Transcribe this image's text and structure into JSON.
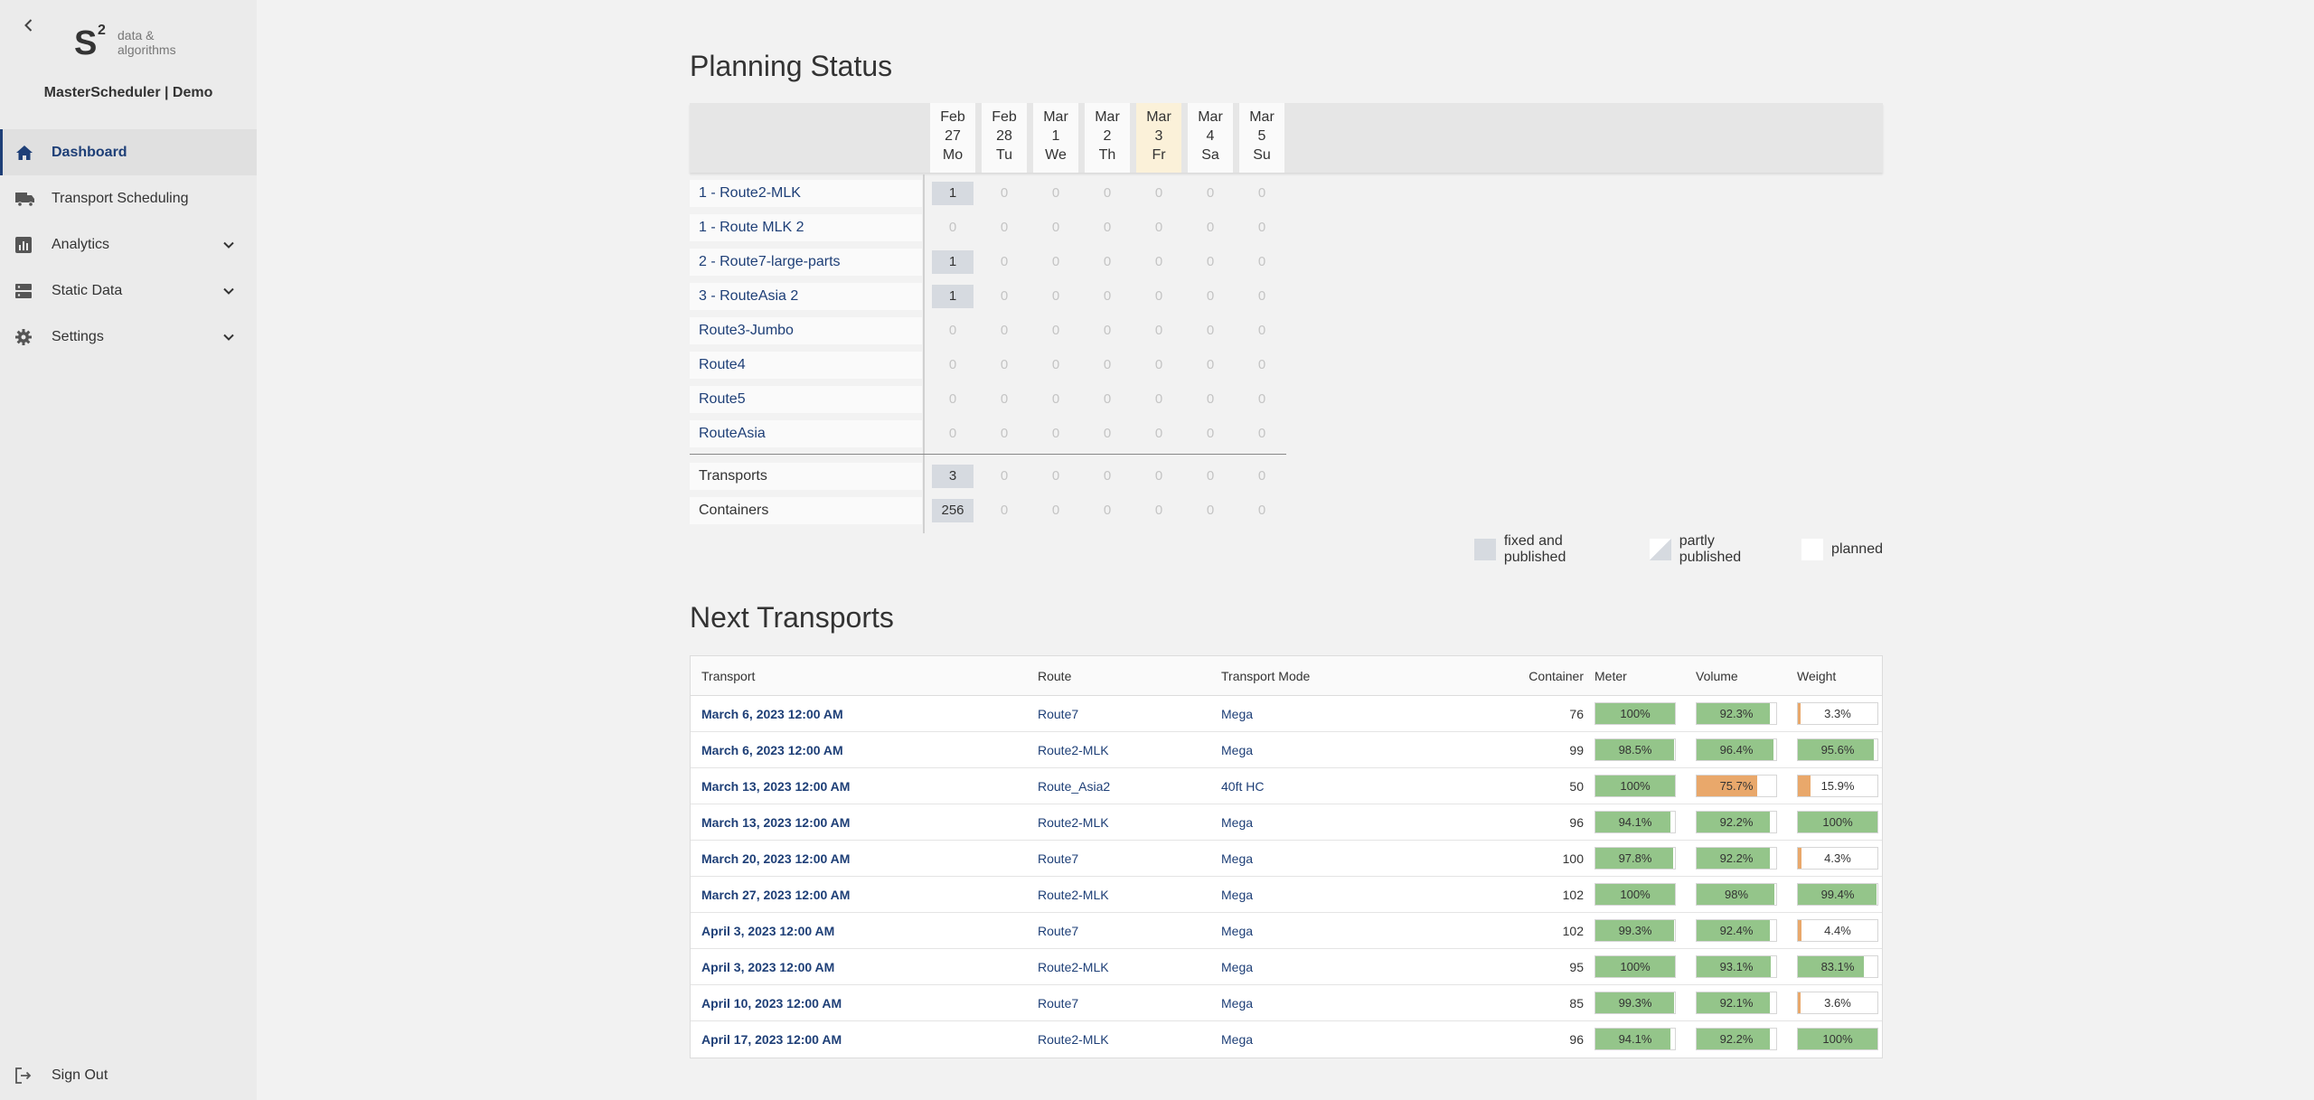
{
  "app": {
    "title": "MasterScheduler | Demo"
  },
  "logo": {
    "text_top": "data &",
    "text_bottom": "algorithms"
  },
  "sidebar": {
    "items": [
      {
        "label": "Dashboard",
        "icon": "home-icon",
        "active": true
      },
      {
        "label": "Transport Scheduling",
        "icon": "truck-icon"
      },
      {
        "label": "Analytics",
        "icon": "chart-icon",
        "expandable": true
      },
      {
        "label": "Static Data",
        "icon": "database-icon",
        "expandable": true
      },
      {
        "label": "Settings",
        "icon": "gear-icon",
        "expandable": true
      }
    ],
    "signout": "Sign Out"
  },
  "planning": {
    "title": "Planning Status",
    "days": [
      {
        "month": "Feb",
        "day": "27",
        "weekday": "Mo"
      },
      {
        "month": "Feb",
        "day": "28",
        "weekday": "Tu"
      },
      {
        "month": "Mar",
        "day": "1",
        "weekday": "We"
      },
      {
        "month": "Mar",
        "day": "2",
        "weekday": "Th"
      },
      {
        "month": "Mar",
        "day": "3",
        "weekday": "Fr",
        "today": true
      },
      {
        "month": "Mar",
        "day": "4",
        "weekday": "Sa"
      },
      {
        "month": "Mar",
        "day": "5",
        "weekday": "Su"
      }
    ],
    "routes": [
      {
        "name": "1 - Route2-MLK",
        "values": [
          1,
          0,
          0,
          0,
          0,
          0,
          0
        ]
      },
      {
        "name": "1 - Route MLK 2",
        "values": [
          0,
          0,
          0,
          0,
          0,
          0,
          0
        ]
      },
      {
        "name": "2 - Route7-large-parts",
        "values": [
          1,
          0,
          0,
          0,
          0,
          0,
          0
        ]
      },
      {
        "name": "3 - RouteAsia 2",
        "values": [
          1,
          0,
          0,
          0,
          0,
          0,
          0
        ]
      },
      {
        "name": "Route3-Jumbo",
        "values": [
          0,
          0,
          0,
          0,
          0,
          0,
          0
        ]
      },
      {
        "name": "Route4",
        "values": [
          0,
          0,
          0,
          0,
          0,
          0,
          0
        ]
      },
      {
        "name": "Route5",
        "values": [
          0,
          0,
          0,
          0,
          0,
          0,
          0
        ]
      },
      {
        "name": "RouteAsia",
        "values": [
          0,
          0,
          0,
          0,
          0,
          0,
          0
        ]
      }
    ],
    "totals": [
      {
        "name": "Transports",
        "values": [
          3,
          0,
          0,
          0,
          0,
          0,
          0
        ]
      },
      {
        "name": "Containers",
        "values": [
          256,
          0,
          0,
          0,
          0,
          0,
          0
        ]
      }
    ],
    "legend": {
      "fixed": "fixed and published",
      "partly": "partly published",
      "planned": "planned"
    }
  },
  "colors": {
    "accent": "#1e3f77",
    "fixed": "#d6dae0",
    "today": "#fbf1d9",
    "bar_good": "#94c58a",
    "bar_warn": "#e9a86b"
  },
  "transports": {
    "title": "Next Transports",
    "headers": {
      "transport": "Transport",
      "route": "Route",
      "mode": "Transport Mode",
      "container": "Container",
      "meter": "Meter",
      "volume": "Volume",
      "weight": "Weight"
    },
    "rows": [
      {
        "transport": "March 6, 2023 12:00 AM",
        "route": "Route7",
        "mode": "Mega",
        "container": "76",
        "meter": {
          "label": "100%",
          "value": 100
        },
        "volume": {
          "label": "92.3%",
          "value": 92.3
        },
        "weight": {
          "label": "3.3%",
          "value": 3.3
        }
      },
      {
        "transport": "March 6, 2023 12:00 AM",
        "route": "Route2-MLK",
        "mode": "Mega",
        "container": "99",
        "meter": {
          "label": "98.5%",
          "value": 98.5
        },
        "volume": {
          "label": "96.4%",
          "value": 96.4
        },
        "weight": {
          "label": "95.6%",
          "value": 95.6
        }
      },
      {
        "transport": "March 13, 2023 12:00 AM",
        "route": "Route_Asia2",
        "mode": "40ft HC",
        "container": "50",
        "meter": {
          "label": "100%",
          "value": 100
        },
        "volume": {
          "label": "75.7%",
          "value": 75.7
        },
        "weight": {
          "label": "15.9%",
          "value": 15.9
        }
      },
      {
        "transport": "March 13, 2023 12:00 AM",
        "route": "Route2-MLK",
        "mode": "Mega",
        "container": "96",
        "meter": {
          "label": "94.1%",
          "value": 94.1
        },
        "volume": {
          "label": "92.2%",
          "value": 92.2
        },
        "weight": {
          "label": "100%",
          "value": 100
        }
      },
      {
        "transport": "March 20, 2023 12:00 AM",
        "route": "Route7",
        "mode": "Mega",
        "container": "100",
        "meter": {
          "label": "97.8%",
          "value": 97.8
        },
        "volume": {
          "label": "92.2%",
          "value": 92.2
        },
        "weight": {
          "label": "4.3%",
          "value": 4.3
        }
      },
      {
        "transport": "March 27, 2023 12:00 AM",
        "route": "Route2-MLK",
        "mode": "Mega",
        "container": "102",
        "meter": {
          "label": "100%",
          "value": 100
        },
        "volume": {
          "label": "98%",
          "value": 98
        },
        "weight": {
          "label": "99.4%",
          "value": 99.4
        }
      },
      {
        "transport": "April 3, 2023 12:00 AM",
        "route": "Route7",
        "mode": "Mega",
        "container": "102",
        "meter": {
          "label": "99.3%",
          "value": 99.3
        },
        "volume": {
          "label": "92.4%",
          "value": 92.4
        },
        "weight": {
          "label": "4.4%",
          "value": 4.4
        }
      },
      {
        "transport": "April 3, 2023 12:00 AM",
        "route": "Route2-MLK",
        "mode": "Mega",
        "container": "95",
        "meter": {
          "label": "100%",
          "value": 100
        },
        "volume": {
          "label": "93.1%",
          "value": 93.1
        },
        "weight": {
          "label": "83.1%",
          "value": 83.1
        }
      },
      {
        "transport": "April 10, 2023 12:00 AM",
        "route": "Route7",
        "mode": "Mega",
        "container": "85",
        "meter": {
          "label": "99.3%",
          "value": 99.3
        },
        "volume": {
          "label": "92.1%",
          "value": 92.1
        },
        "weight": {
          "label": "3.6%",
          "value": 3.6
        }
      },
      {
        "transport": "April 17, 2023 12:00 AM",
        "route": "Route2-MLK",
        "mode": "Mega",
        "container": "96",
        "meter": {
          "label": "94.1%",
          "value": 94.1
        },
        "volume": {
          "label": "92.2%",
          "value": 92.2
        },
        "weight": {
          "label": "100%",
          "value": 100
        }
      }
    ]
  }
}
